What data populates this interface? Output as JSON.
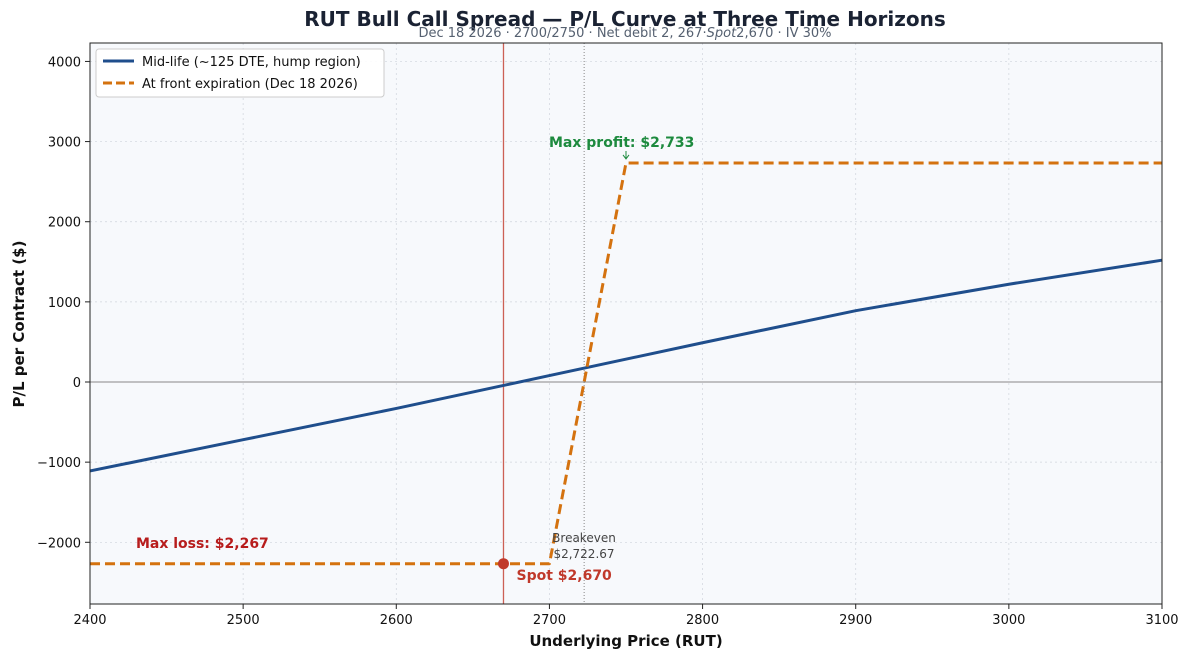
{
  "chart_data": {
    "type": "line",
    "title": "RUT Bull Call Spread — P/L Curve at Three Time Horizons",
    "subtitle": "Dec 18 2026 · 2700/2750 · Net debit 2,267·Spot 2,670 · IV 30%",
    "subtitle_parts": {
      "before": "Dec 18 2026 · 2700/2750 · Net debit 2, 267·",
      "italic": "Spot",
      "after": "2,670 · IV 30%"
    },
    "xlabel": "Underlying Price (RUT)",
    "ylabel": "P/L per Contract ($)",
    "xlim": [
      2400,
      3100
    ],
    "ylim": [
      -2770,
      4230
    ],
    "x_ticks": [
      2400,
      2500,
      2600,
      2700,
      2800,
      2900,
      3000,
      3100
    ],
    "y_ticks": [
      -2000,
      -1000,
      0,
      1000,
      2000,
      3000,
      4000
    ],
    "y_tick_labels": [
      "−2000",
      "−1000",
      "0",
      "1000",
      "2000",
      "3000",
      "4000"
    ],
    "grid": true,
    "legend_position": "top-left",
    "series": [
      {
        "name": "Mid-life (~125 DTE, hump region)",
        "style": "solid",
        "color": "#1f4e8c",
        "x": [
          2400,
          2500,
          2600,
          2700,
          2800,
          2900,
          3000,
          3100
        ],
        "y": [
          -1110,
          -720,
          -330,
          80,
          490,
          890,
          1220,
          1520
        ]
      },
      {
        "name": "At front expiration (Dec 18 2026)",
        "style": "dashed",
        "color": "#d4720f",
        "x": [
          2400,
          2700,
          2750,
          3100
        ],
        "y": [
          -2267,
          -2267,
          2733,
          2733
        ]
      }
    ],
    "spot": {
      "x": 2670,
      "y": -2267,
      "label": "Spot $2,670",
      "color": "#c0392b"
    },
    "breakeven": {
      "x": 2722.67,
      "label_line1": "Breakeven",
      "label_line2": "$2,722.67"
    },
    "annotations": {
      "max_profit": {
        "label": "Max profit: $2,733",
        "x": 2750,
        "y": 2733
      },
      "max_loss": {
        "label": "Max loss: $2,267",
        "x": 2430,
        "y": -2267
      }
    }
  }
}
